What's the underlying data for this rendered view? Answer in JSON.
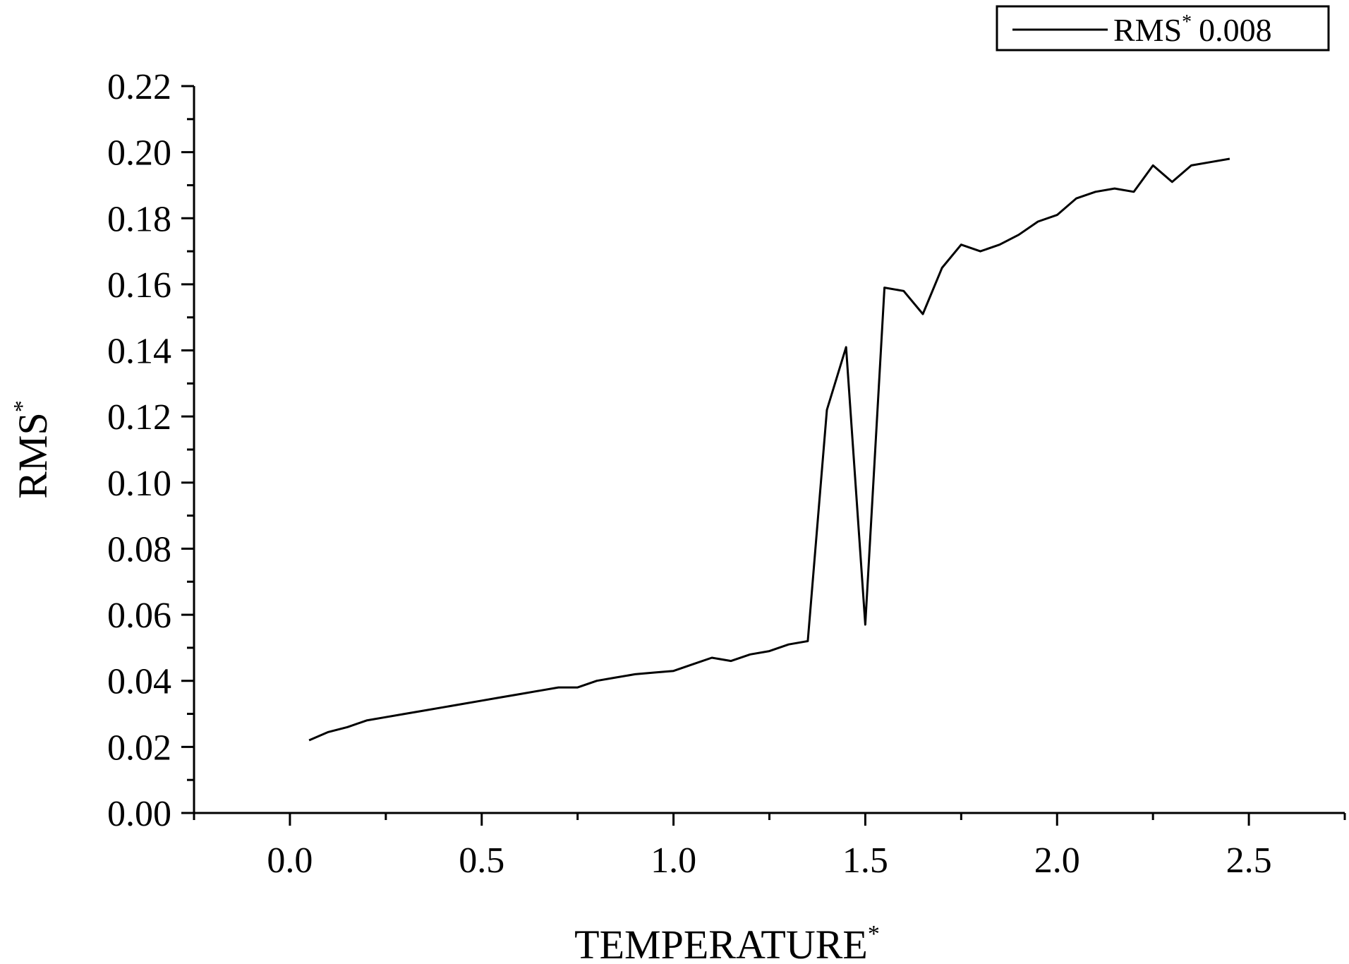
{
  "chart_data": {
    "type": "line",
    "xlabel": "TEMPERATURE",
    "xlabel_superscript": "*",
    "ylabel": "RMS",
    "ylabel_superscript": "*",
    "xlim": [
      -0.25,
      2.75
    ],
    "ylim": [
      0.0,
      0.22
    ],
    "xticks": [
      0.0,
      0.5,
      1.0,
      1.5,
      2.0,
      2.5
    ],
    "xtick_labels": [
      "0.0",
      "0.5",
      "1.0",
      "1.5",
      "2.0",
      "2.5"
    ],
    "yticks": [
      0.0,
      0.02,
      0.04,
      0.06,
      0.08,
      0.1,
      0.12,
      0.14,
      0.16,
      0.18,
      0.2,
      0.22
    ],
    "ytick_labels": [
      "0.00",
      "0.02",
      "0.04",
      "0.06",
      "0.08",
      "0.10",
      "0.12",
      "0.14",
      "0.16",
      "0.18",
      "0.20",
      "0.22"
    ],
    "grid": false,
    "legend_position": "top-right",
    "series": [
      {
        "name": "RMS",
        "name_superscript": "*",
        "name_suffix": "0.008",
        "color": "#000000",
        "x": [
          0.05,
          0.1,
          0.15,
          0.2,
          0.25,
          0.3,
          0.35,
          0.4,
          0.45,
          0.5,
          0.55,
          0.6,
          0.65,
          0.7,
          0.75,
          0.8,
          0.85,
          0.9,
          0.95,
          1.0,
          1.05,
          1.1,
          1.15,
          1.2,
          1.25,
          1.3,
          1.35,
          1.4,
          1.45,
          1.5,
          1.55,
          1.6,
          1.65,
          1.7,
          1.75,
          1.8,
          1.85,
          1.9,
          1.95,
          2.0,
          2.05,
          2.1,
          2.15,
          2.2,
          2.25,
          2.3,
          2.35,
          2.4,
          2.45
        ],
        "y": [
          0.022,
          0.0245,
          0.026,
          0.028,
          0.029,
          0.03,
          0.031,
          0.032,
          0.033,
          0.034,
          0.035,
          0.036,
          0.037,
          0.038,
          0.038,
          0.04,
          0.041,
          0.042,
          0.0425,
          0.043,
          0.045,
          0.047,
          0.046,
          0.048,
          0.049,
          0.051,
          0.052,
          0.122,
          0.141,
          0.057,
          0.159,
          0.158,
          0.151,
          0.165,
          0.172,
          0.17,
          0.172,
          0.175,
          0.179,
          0.181,
          0.186,
          0.188,
          0.189,
          0.188,
          0.196,
          0.191,
          0.196,
          0.197,
          0.198
        ]
      }
    ]
  }
}
